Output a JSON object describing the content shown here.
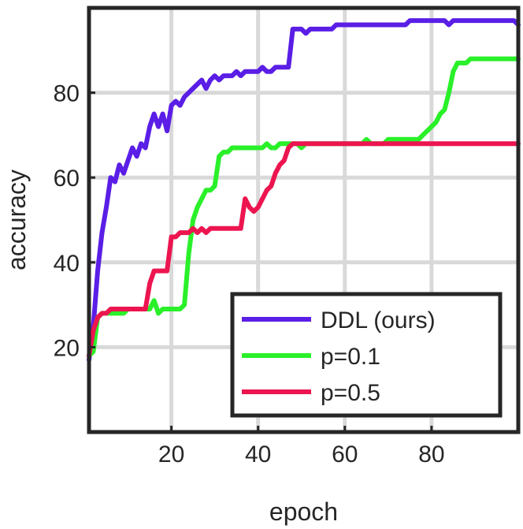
{
  "chart_data": {
    "type": "line",
    "xlabel": "epoch",
    "ylabel": "accuracy",
    "xlim": [
      1,
      100
    ],
    "ylim": [
      0,
      100
    ],
    "xticks": [
      20,
      40,
      60,
      80
    ],
    "yticks": [
      20,
      40,
      60,
      80
    ],
    "grid": true,
    "legend": {
      "placement": "bottom-right"
    },
    "x": [
      1,
      2,
      3,
      4,
      5,
      6,
      7,
      8,
      9,
      10,
      11,
      12,
      13,
      14,
      15,
      16,
      17,
      18,
      19,
      20,
      21,
      22,
      23,
      24,
      25,
      26,
      27,
      28,
      29,
      30,
      31,
      32,
      33,
      34,
      35,
      36,
      37,
      38,
      39,
      40,
      41,
      42,
      43,
      44,
      45,
      46,
      47,
      48,
      49,
      50,
      51,
      52,
      53,
      54,
      55,
      56,
      57,
      58,
      59,
      60,
      61,
      62,
      63,
      64,
      65,
      66,
      67,
      68,
      69,
      70,
      71,
      72,
      73,
      74,
      75,
      76,
      77,
      78,
      79,
      80,
      81,
      82,
      83,
      84,
      85,
      86,
      87,
      88,
      89,
      90,
      91,
      92,
      93,
      94,
      95,
      96,
      97,
      98,
      99,
      100
    ],
    "series": [
      {
        "name": "DDL (ours)",
        "color": "#5a1ee6",
        "values": [
          17,
          25,
          38,
          47,
          53,
          60,
          59,
          63,
          61,
          64,
          67,
          65,
          68,
          67,
          72,
          75,
          72,
          75,
          71,
          77,
          78,
          77,
          79,
          80,
          81,
          82,
          83,
          81,
          83,
          84,
          83,
          84,
          84,
          84,
          85,
          84,
          85,
          85,
          85,
          85,
          86,
          85,
          85,
          86,
          86,
          86,
          86,
          95,
          95,
          95,
          94,
          95,
          95,
          95,
          95,
          95,
          95,
          96,
          96,
          96,
          96,
          96,
          96,
          96,
          96,
          96,
          96,
          96,
          96,
          96,
          96,
          96,
          96,
          96,
          97,
          97,
          97,
          97,
          97,
          97,
          97,
          97,
          97,
          96,
          97,
          97,
          97,
          97,
          97,
          97,
          97,
          97,
          97,
          97,
          97,
          97,
          97,
          97,
          97,
          96
        ]
      },
      {
        "name": "p=0.1",
        "color": "#2af02a",
        "values": [
          18,
          19,
          27,
          28,
          28,
          28,
          28,
          28,
          28,
          29,
          29,
          29,
          29,
          29,
          29,
          31,
          28,
          29,
          29,
          29,
          29,
          29,
          30,
          42,
          50,
          53,
          55,
          57,
          57,
          58,
          65,
          66,
          66,
          67,
          67,
          67,
          67,
          67,
          67,
          67,
          67,
          68,
          67,
          67,
          68,
          68,
          68,
          68,
          68,
          67,
          68,
          68,
          68,
          68,
          68,
          68,
          68,
          68,
          68,
          68,
          68,
          68,
          68,
          68,
          69,
          68,
          68,
          68,
          68,
          69,
          69,
          69,
          69,
          69,
          69,
          69,
          69,
          70,
          71,
          72,
          73,
          75,
          76,
          80,
          85,
          87,
          87,
          87,
          88,
          88,
          88,
          88,
          88,
          88,
          88,
          88,
          88,
          88,
          88,
          88
        ]
      },
      {
        "name": "p=0.5",
        "color": "#ec1550",
        "values": [
          18,
          24,
          27,
          28,
          28,
          29,
          29,
          29,
          29,
          29,
          29,
          29,
          29,
          29,
          35,
          38,
          38,
          38,
          38,
          46,
          46,
          47,
          47,
          47,
          48,
          47,
          48,
          47,
          48,
          48,
          48,
          48,
          48,
          48,
          48,
          48,
          55,
          53,
          52,
          53,
          55,
          57,
          58,
          61,
          63,
          64,
          67,
          68,
          68,
          68,
          68,
          68,
          68,
          68,
          68,
          68,
          68,
          68,
          68,
          68,
          68,
          68,
          68,
          68,
          68,
          68,
          68,
          68,
          68,
          68,
          68,
          68,
          68,
          68,
          68,
          68,
          68,
          68,
          68,
          68,
          68,
          68,
          68,
          68,
          68,
          68,
          68,
          68,
          68,
          68,
          68,
          68,
          68,
          68,
          68,
          68,
          68,
          68,
          68,
          68
        ]
      }
    ]
  }
}
